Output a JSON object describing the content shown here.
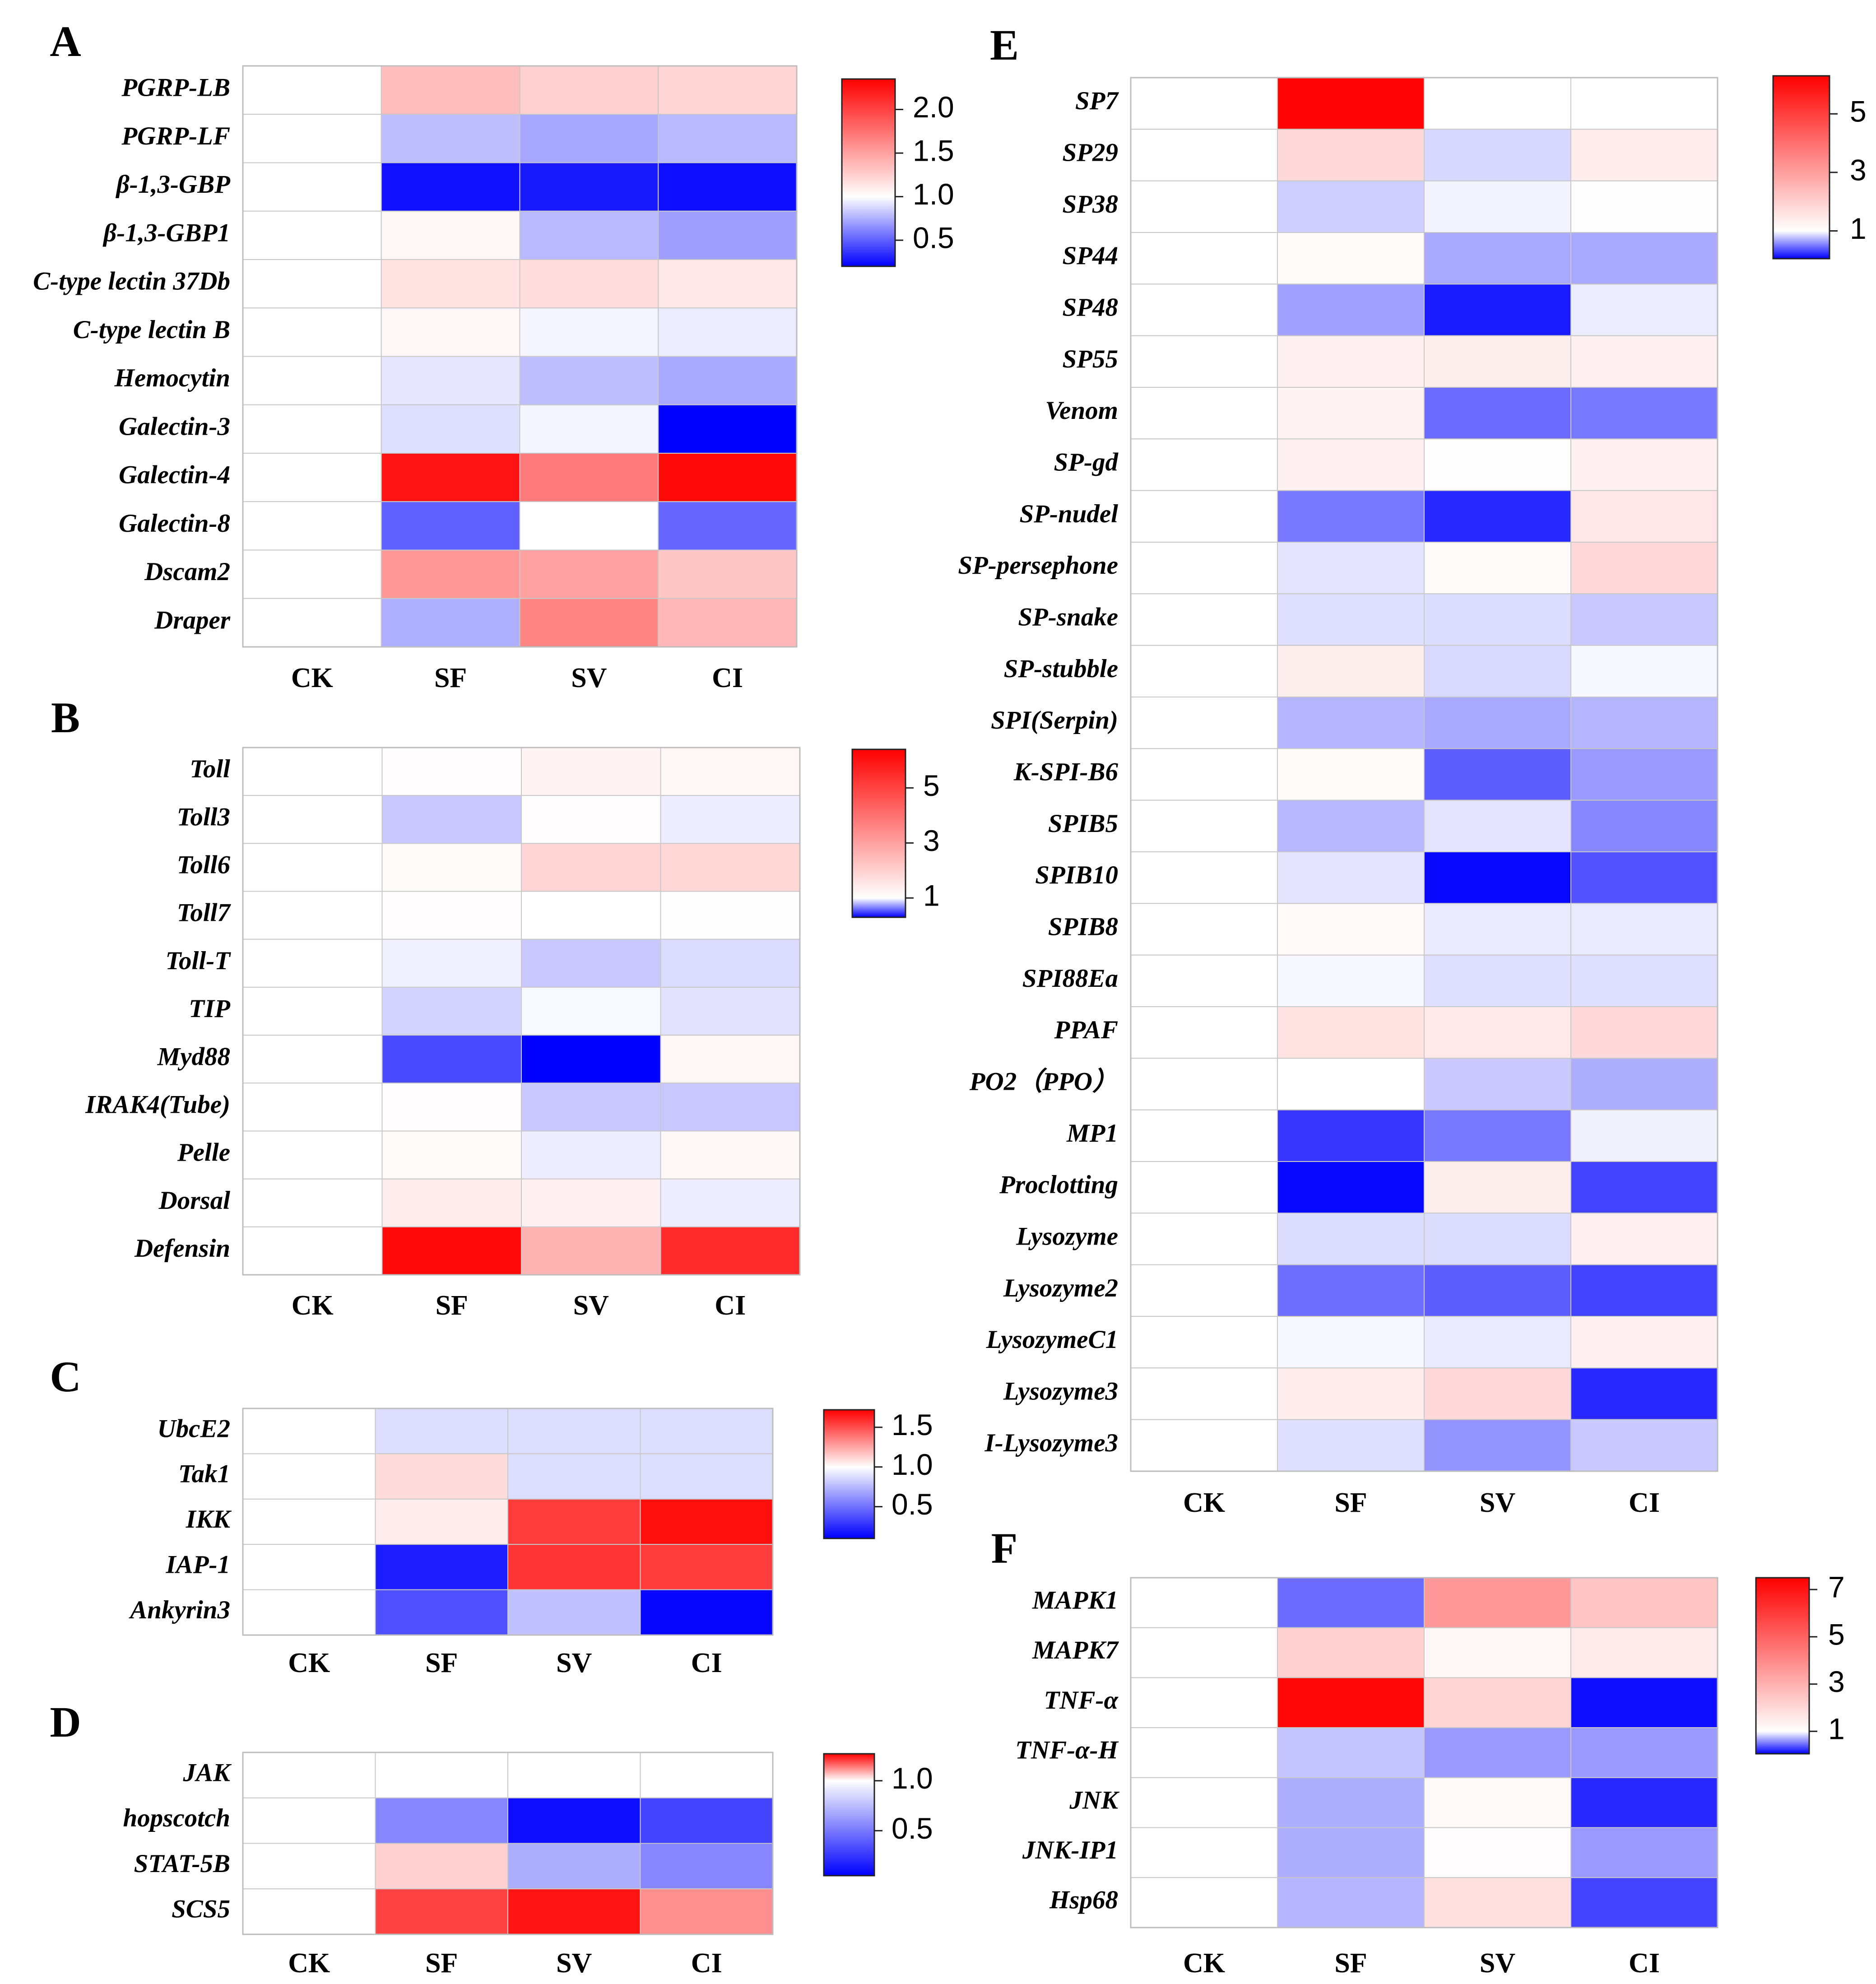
{
  "chart_data": [
    {
      "panel": "A",
      "type": "heatmap",
      "columns": [
        "CK",
        "SF",
        "SV",
        "CI"
      ],
      "rows": [
        "PGRP-LB",
        "PGRP-LF",
        "β-1,3-GBP",
        "β-1,3-GBP1",
        "C-type lectin 37Db",
        "C-type lectin B",
        "Hemocytin",
        "Galectin-3",
        "Galectin-4",
        "Galectin-8",
        "Dscam2",
        "Draper"
      ],
      "values": [
        [
          1.0,
          1.35,
          1.25,
          1.22
        ],
        [
          1.0,
          0.8,
          0.72,
          0.78
        ],
        [
          1.0,
          0.25,
          0.28,
          0.24
        ],
        [
          1.0,
          1.05,
          0.78,
          0.7
        ],
        [
          1.0,
          1.15,
          1.18,
          1.12
        ],
        [
          1.0,
          1.04,
          0.97,
          0.94
        ],
        [
          1.0,
          0.92,
          0.8,
          0.73
        ],
        [
          1.0,
          0.9,
          0.97,
          0.08
        ],
        [
          1.0,
          2.25,
          1.7,
          2.3
        ],
        [
          1.0,
          0.5,
          1.0,
          0.52
        ],
        [
          1.0,
          1.55,
          1.5,
          1.3
        ],
        [
          1.0,
          0.75,
          1.65,
          1.38
        ]
      ],
      "colorbar": {
        "min": 0.2,
        "max": 2.35,
        "center": 1.0,
        "ticks": [
          "2.0",
          "1.5",
          "1.0",
          "0.5"
        ],
        "tick_values": [
          2.0,
          1.5,
          1.0,
          0.5
        ]
      }
    },
    {
      "panel": "B",
      "type": "heatmap",
      "columns": [
        "CK",
        "SF",
        "SV",
        "CI"
      ],
      "rows": [
        "Toll",
        "Toll3",
        "Toll6",
        "Toll7",
        "Toll-T",
        "TIP",
        "Myd88",
        "IRAK4(Tube)",
        "Pelle",
        "Dorsal",
        "Defensin"
      ],
      "values": [
        [
          1.0,
          1.05,
          1.25,
          1.2
        ],
        [
          1.0,
          0.85,
          1.05,
          0.95
        ],
        [
          1.0,
          1.08,
          1.9,
          1.85
        ],
        [
          1.0,
          1.05,
          1.0,
          1.02
        ],
        [
          1.0,
          0.96,
          0.85,
          0.9
        ],
        [
          1.0,
          0.88,
          0.98,
          0.92
        ],
        [
          1.0,
          0.5,
          0.3,
          1.2
        ],
        [
          1.0,
          1.05,
          0.85,
          0.85
        ],
        [
          1.0,
          1.1,
          0.95,
          1.15
        ],
        [
          1.0,
          1.4,
          1.3,
          0.95
        ],
        [
          1.0,
          6.2,
          2.6,
          5.5
        ]
      ],
      "colorbar": {
        "min": 0.3,
        "max": 6.4,
        "center": 1.0,
        "ticks": [
          "5",
          "3",
          "1"
        ],
        "tick_values": [
          5,
          3,
          1
        ]
      }
    },
    {
      "panel": "C",
      "type": "heatmap",
      "columns": [
        "CK",
        "SF",
        "SV",
        "CI"
      ],
      "rows": [
        "UbcE2",
        "Tak1",
        "IKK",
        "IAP-1",
        "Ankyrin3"
      ],
      "values": [
        [
          1.0,
          0.88,
          0.88,
          0.88
        ],
        [
          1.0,
          1.1,
          0.88,
          0.88
        ],
        [
          1.0,
          1.05,
          1.55,
          1.68
        ],
        [
          1.0,
          0.2,
          1.57,
          1.55
        ],
        [
          1.0,
          0.38,
          0.78,
          0.12
        ]
      ],
      "colorbar": {
        "min": 0.1,
        "max": 1.72,
        "center": 1.0,
        "ticks": [
          "1.5",
          "1.0",
          "0.5"
        ],
        "tick_values": [
          1.5,
          1.0,
          0.5
        ]
      }
    },
    {
      "panel": "D",
      "type": "heatmap",
      "columns": [
        "CK",
        "SF",
        "SV",
        "CI"
      ],
      "rows": [
        "JAK",
        "hopscotch",
        "STAT-5B",
        "SCS5"
      ],
      "values": [
        [
          1.0,
          1.0,
          1.0,
          1.0
        ],
        [
          1.0,
          0.55,
          0.1,
          0.3
        ],
        [
          1.0,
          1.05,
          0.7,
          0.55
        ],
        [
          1.0,
          1.2,
          1.25,
          1.12
        ]
      ],
      "colorbar": {
        "min": 0.05,
        "max": 1.27,
        "center": 1.0,
        "ticks": [
          "1.0",
          "0.5"
        ],
        "tick_values": [
          1.0,
          0.5
        ]
      }
    },
    {
      "panel": "E",
      "type": "heatmap",
      "columns": [
        "CK",
        "SF",
        "SV",
        "CI"
      ],
      "rows": [
        "SP7",
        "SP29",
        "SP38",
        "SP44",
        "SP48",
        "SP55",
        "Venom",
        "SP-gd",
        "SP-nudel",
        "SP-persephone",
        "SP-snake",
        "SP-stubble",
        "SPI(Serpin)",
        "K-SPI-B6",
        "SPIB5",
        "SPIB10",
        "SPIB8",
        "SPI88Ea",
        "PPAF",
        "PO2（PPO）",
        "MP1",
        "Proclotting",
        "Lysozyme",
        "Lysozyme2",
        "LysozymeC1",
        "Lysozyme3",
        "I-Lysozyme3"
      ],
      "values": [
        [
          1.0,
          6.2,
          1.0,
          1.0
        ],
        [
          1.0,
          1.8,
          0.85,
          1.4
        ],
        [
          1.0,
          0.82,
          0.96,
          1.02
        ],
        [
          1.0,
          1.08,
          0.68,
          0.68
        ],
        [
          1.0,
          0.65,
          0.15,
          0.93
        ],
        [
          1.0,
          1.3,
          1.35,
          1.3
        ],
        [
          1.0,
          1.25,
          0.45,
          0.5
        ],
        [
          1.0,
          1.3,
          1.02,
          1.3
        ],
        [
          1.0,
          0.5,
          0.2,
          1.5
        ],
        [
          1.0,
          0.9,
          1.08,
          1.8
        ],
        [
          1.0,
          0.88,
          0.87,
          0.8
        ],
        [
          1.0,
          1.35,
          0.86,
          0.97
        ],
        [
          1.0,
          0.72,
          0.68,
          0.72
        ],
        [
          1.0,
          1.08,
          0.4,
          0.62
        ],
        [
          1.0,
          0.73,
          0.9,
          0.55
        ],
        [
          1.0,
          0.9,
          0.08,
          0.35
        ],
        [
          1.0,
          1.12,
          0.92,
          0.92
        ],
        [
          1.0,
          0.97,
          0.88,
          0.88
        ],
        [
          1.0,
          1.6,
          1.45,
          1.8
        ],
        [
          1.0,
          1.0,
          0.8,
          0.7
        ],
        [
          1.0,
          0.25,
          0.5,
          0.95
        ],
        [
          1.0,
          0.08,
          1.35,
          0.3
        ],
        [
          1.0,
          0.87,
          0.87,
          1.3
        ],
        [
          1.0,
          0.46,
          0.4,
          0.3
        ],
        [
          1.0,
          0.97,
          0.92,
          1.3
        ],
        [
          1.0,
          1.4,
          1.8,
          0.2
        ],
        [
          1.0,
          0.88,
          0.6,
          0.8
        ]
      ],
      "colorbar": {
        "min": 0.05,
        "max": 6.3,
        "center": 1.0,
        "ticks": [
          "5",
          "3",
          "1"
        ],
        "tick_values": [
          5,
          3,
          1
        ]
      }
    },
    {
      "panel": "F",
      "type": "heatmap",
      "columns": [
        "CK",
        "SF",
        "SV",
        "CI"
      ],
      "rows": [
        "MAPK1",
        "MAPK7",
        "TNF-α",
        "TNF-α-H",
        "JNK",
        "JNK-IP1",
        "Hsp68"
      ],
      "values": [
        [
          1.0,
          0.45,
          3.6,
          2.5
        ],
        [
          1.0,
          2.2,
          1.2,
          1.5
        ],
        [
          1.0,
          7.3,
          2.1,
          0.1
        ],
        [
          1.0,
          0.78,
          0.62,
          0.62
        ],
        [
          1.0,
          0.7,
          1.15,
          0.2
        ],
        [
          1.0,
          0.7,
          1.05,
          0.62
        ],
        [
          1.0,
          0.72,
          1.8,
          0.3
        ]
      ],
      "colorbar": {
        "min": 0.05,
        "max": 7.5,
        "center": 1.0,
        "ticks": [
          "7",
          "5",
          "3",
          "1"
        ],
        "tick_values": [
          7,
          5,
          3,
          1
        ]
      }
    }
  ]
}
